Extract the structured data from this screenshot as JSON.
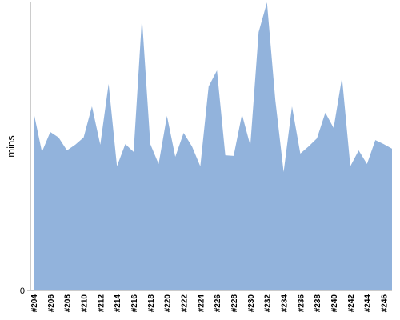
{
  "chart_data": {
    "type": "area",
    "y_label": "mins",
    "categories": [
      "#204",
      null,
      "#206",
      null,
      "#208",
      null,
      "#210",
      null,
      "#212",
      null,
      "#214",
      null,
      "#216",
      null,
      "#218",
      null,
      "#220",
      null,
      "#222",
      null,
      "#224",
      null,
      "#226",
      null,
      "#228",
      null,
      "#230",
      null,
      "#232",
      null,
      "#234",
      null,
      "#236",
      null,
      "#238",
      null,
      "#240",
      null,
      "#242",
      null,
      "#244",
      null,
      "#246",
      null
    ],
    "values": [
      6.19,
      4.81,
      5.5,
      5.31,
      4.86,
      5.06,
      5.31,
      6.39,
      5.06,
      7.17,
      4.31,
      5.08,
      4.81,
      9.47,
      5.08,
      4.39,
      6.06,
      4.64,
      5.47,
      5.0,
      4.31,
      7.08,
      7.64,
      4.69,
      4.67,
      6.11,
      5.03,
      8.97,
      10.0,
      6.61,
      4.11,
      6.39,
      4.75,
      5.0,
      5.28,
      6.17,
      5.64,
      7.39,
      4.31,
      4.86,
      4.39,
      5.22,
      5.08,
      4.92
    ],
    "color": "#92b3dc",
    "ylim": [
      0,
      10
    ],
    "yticks": [
      0
    ]
  }
}
